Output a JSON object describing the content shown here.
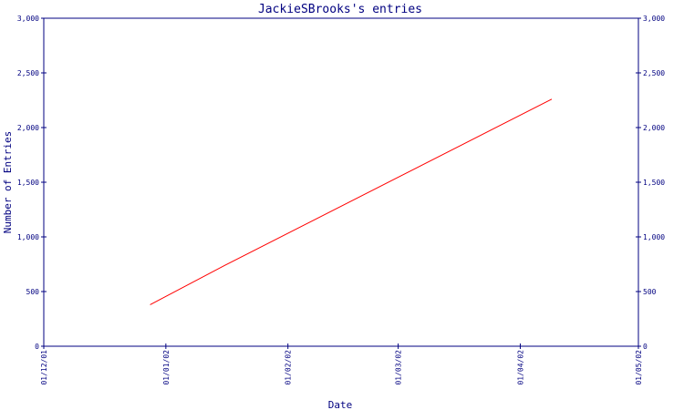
{
  "chart_data": {
    "type": "line",
    "title": "JackieSBrooks's entries",
    "xlabel": "Date",
    "ylabel": "Number of Entries",
    "x_ticks": [
      "01/12/01",
      "01/01/02",
      "01/02/02",
      "01/03/02",
      "01/04/02",
      "01/05/02"
    ],
    "xlim": [
      "2001-12-01",
      "2002-05-01"
    ],
    "ylim": [
      0,
      3000
    ],
    "y_ticks": [
      0,
      500,
      1000,
      1500,
      2000,
      2500,
      3000
    ],
    "y_tick_labels": [
      "0",
      "500",
      "1,000",
      "1,500",
      "2,000",
      "2,500",
      "3,000"
    ],
    "right_axis": true,
    "grid": false,
    "series": [
      {
        "color": "#ff0000",
        "x": [
          "2001-12-28",
          "2002-01-16",
          "2002-04-09"
        ],
        "values": [
          380,
          740,
          2260
        ]
      }
    ]
  },
  "colors": {
    "axis": "#000080",
    "text": "#000080",
    "line": "#ff0000",
    "background": "#ffffff"
  }
}
